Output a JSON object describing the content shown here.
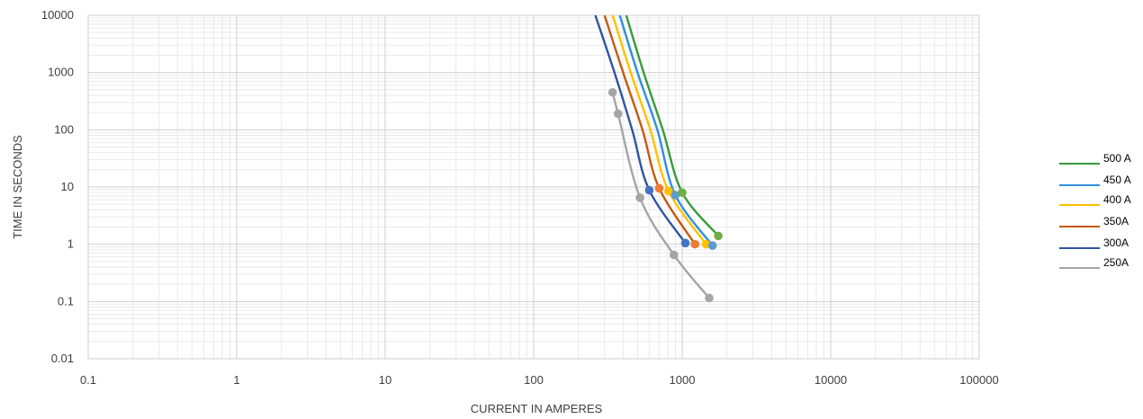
{
  "chart_data": {
    "type": "line",
    "title": "",
    "xlabel": "CURRENT IN AMPERES",
    "ylabel": "TIME IN SECONDS",
    "x_scale": "log",
    "y_scale": "log",
    "xlim": [
      0.1,
      100000
    ],
    "ylim": [
      0.01,
      10000
    ],
    "x_ticks": [
      "0.1",
      "1",
      "10",
      "100",
      "1000",
      "10000",
      "100000"
    ],
    "y_ticks": [
      "10000",
      "1000",
      "100",
      "10",
      "1",
      "0.1",
      "0.01"
    ],
    "grid": true,
    "legend_position": "right",
    "series": [
      {
        "name": "500 A",
        "color": "#3a9a3a",
        "marker_color": "#70ad47",
        "points": [
          [
            420,
            10000
          ],
          [
            550,
            1000
          ],
          [
            740,
            100
          ],
          [
            1000,
            8
          ],
          [
            1750,
            1.4
          ]
        ],
        "markers": [
          [
            1000,
            8
          ],
          [
            1750,
            1.4
          ]
        ]
      },
      {
        "name": "450 A",
        "color": "#2e8fe0",
        "marker_color": "#5b9bd5",
        "points": [
          [
            380,
            10000
          ],
          [
            500,
            1000
          ],
          [
            680,
            100
          ],
          [
            900,
            7.2
          ],
          [
            1600,
            0.95
          ]
        ],
        "markers": [
          [
            900,
            7.2
          ],
          [
            1600,
            0.95
          ]
        ]
      },
      {
        "name": "400 A",
        "color": "#ffc000",
        "marker_color": "#ffc000",
        "points": [
          [
            340,
            10000
          ],
          [
            450,
            1000
          ],
          [
            610,
            100
          ],
          [
            810,
            8.5
          ],
          [
            1450,
            1.0
          ]
        ],
        "markers": [
          [
            810,
            8.5
          ],
          [
            1450,
            1.0
          ]
        ]
      },
      {
        "name": "350A",
        "color": "#c55a11",
        "marker_color": "#ed7d31",
        "points": [
          [
            300,
            10000
          ],
          [
            400,
            1000
          ],
          [
            540,
            100
          ],
          [
            700,
            9.5
          ],
          [
            1220,
            1.0
          ]
        ],
        "markers": [
          [
            700,
            9.5
          ],
          [
            1220,
            1.0
          ]
        ]
      },
      {
        "name": "300A",
        "color": "#2f55a4",
        "marker_color": "#4472c4",
        "points": [
          [
            260,
            10000
          ],
          [
            350,
            1000
          ],
          [
            460,
            100
          ],
          [
            600,
            8.8
          ],
          [
            1050,
            1.05
          ]
        ],
        "markers": [
          [
            600,
            8.8
          ],
          [
            1050,
            1.05
          ]
        ]
      },
      {
        "name": "250A",
        "color": "#a5a5a5",
        "marker_color": "#a5a5a5",
        "points": [
          [
            340,
            450
          ],
          [
            370,
            190
          ],
          [
            520,
            6.5
          ],
          [
            880,
            0.65
          ],
          [
            1520,
            0.115
          ]
        ],
        "markers": [
          [
            340,
            450
          ],
          [
            370,
            190
          ],
          [
            520,
            6.5
          ],
          [
            880,
            0.65
          ],
          [
            1520,
            0.115
          ]
        ]
      }
    ]
  }
}
